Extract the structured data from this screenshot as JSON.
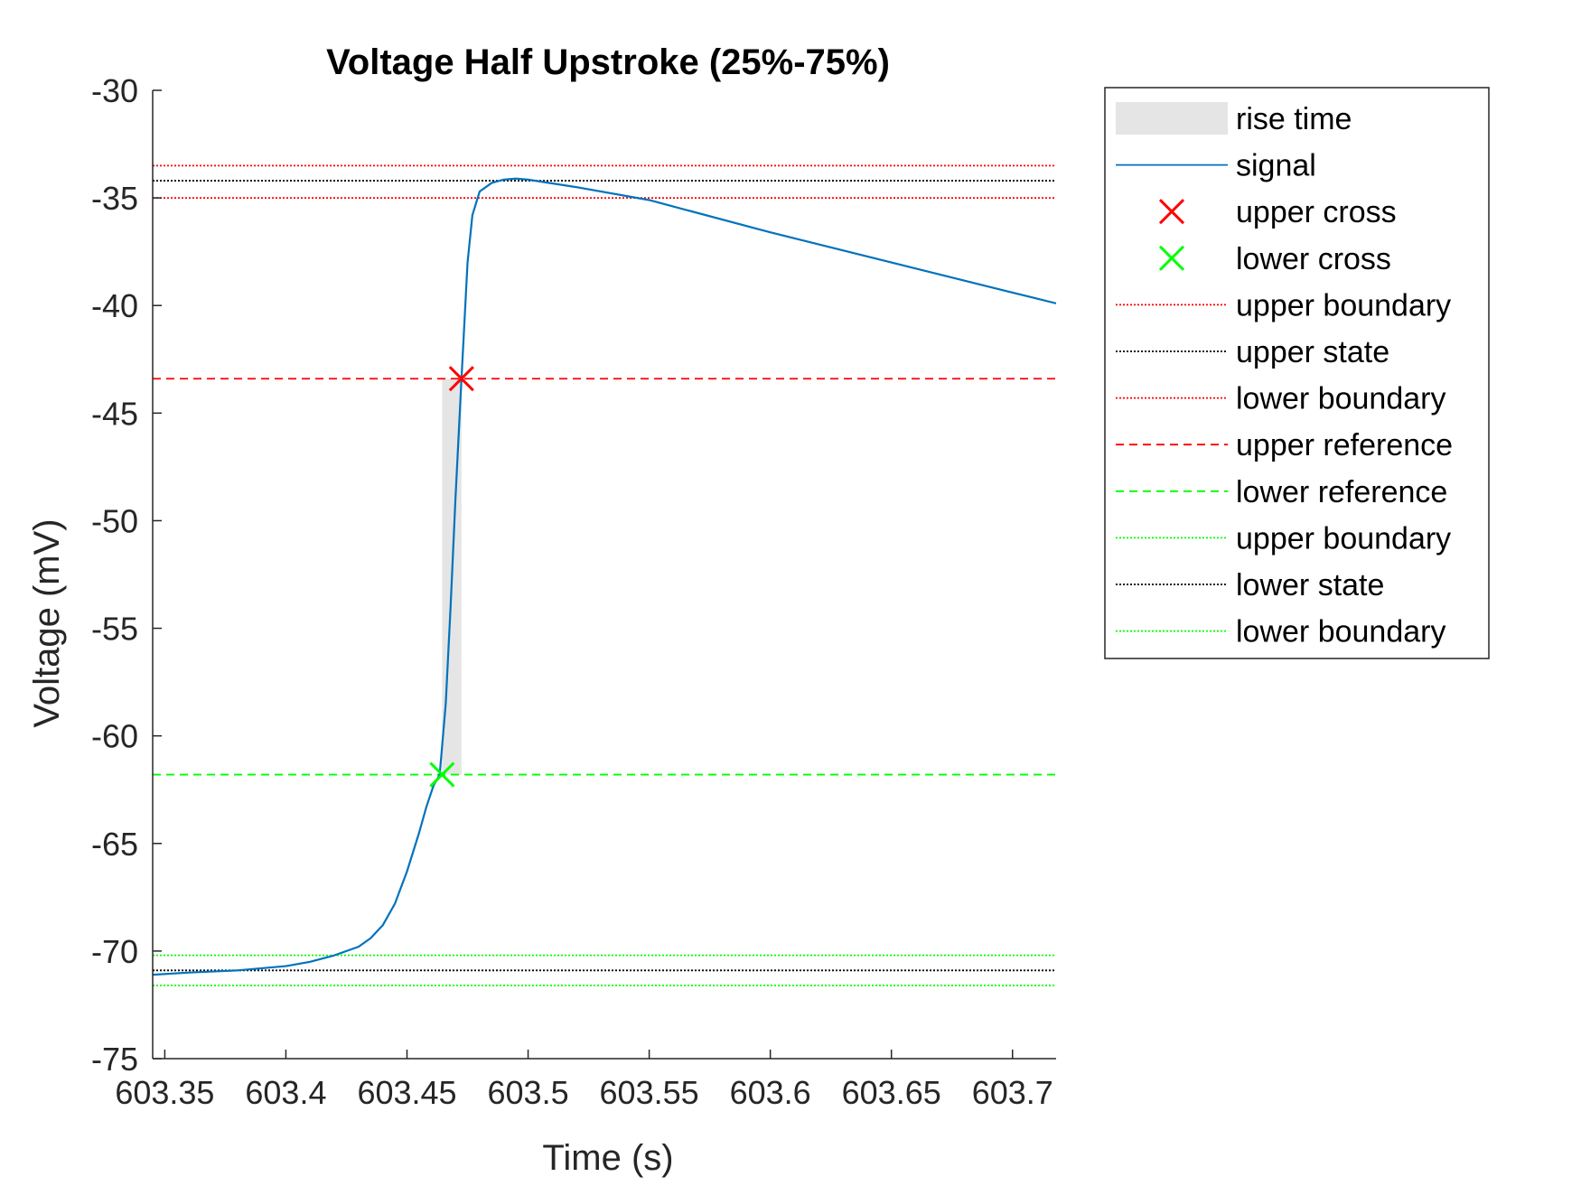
{
  "chart_data": {
    "type": "line",
    "title": "Voltage Half Upstroke (25%-75%)",
    "xlabel": "Time (s)",
    "ylabel": "Voltage (mV)",
    "xlim": [
      603.345,
      603.718
    ],
    "ylim": [
      -75,
      -30
    ],
    "xticks": [
      603.35,
      603.4,
      603.45,
      603.5,
      603.55,
      603.6,
      603.65,
      603.7
    ],
    "xtick_labels": [
      "603.35",
      "603.4",
      "603.45",
      "603.5",
      "603.55",
      "603.6",
      "603.65",
      "603.7"
    ],
    "yticks": [
      -30,
      -35,
      -40,
      -45,
      -50,
      -55,
      -60,
      -65,
      -70,
      -75
    ],
    "ytick_labels": [
      "-30",
      "-35",
      "-40",
      "-45",
      "-50",
      "-55",
      "-60",
      "-65",
      "-70",
      "-75"
    ],
    "grid": false,
    "legend_position": "outside-right",
    "rise_time_band": {
      "x_start": 603.4645,
      "x_end": 603.4725,
      "y_bottom": -61.8,
      "y_top": -43.4,
      "color": "#e5e5e5"
    },
    "signal": {
      "name": "signal",
      "color": "#0072bd",
      "x": [
        603.345,
        603.36,
        603.38,
        603.4,
        603.41,
        603.42,
        603.43,
        603.435,
        603.44,
        603.445,
        603.45,
        603.455,
        603.458,
        603.461,
        603.4635,
        603.466,
        603.468,
        603.47,
        603.4725,
        603.475,
        603.477,
        603.48,
        603.485,
        603.49,
        603.495,
        603.5,
        603.52,
        603.55,
        603.6,
        603.65,
        603.7,
        603.718
      ],
      "y": [
        -71.1,
        -71.0,
        -70.9,
        -70.7,
        -70.5,
        -70.2,
        -69.8,
        -69.4,
        -68.8,
        -67.8,
        -66.3,
        -64.5,
        -63.3,
        -62.3,
        -61.8,
        -58.5,
        -54.0,
        -49.0,
        -43.4,
        -38.0,
        -35.8,
        -34.7,
        -34.3,
        -34.15,
        -34.1,
        -34.15,
        -34.5,
        -35.1,
        -36.6,
        -38.0,
        -39.4,
        -39.9
      ]
    },
    "upper_cross": {
      "name": "upper cross",
      "x": 603.4725,
      "y": -43.4,
      "color": "#ff0000"
    },
    "lower_cross": {
      "name": "lower cross",
      "x": 603.4645,
      "y": -61.8,
      "color": "#00ff00"
    },
    "hlines": [
      {
        "name": "upper boundary",
        "y": -33.5,
        "color": "#ff0000",
        "style": "dotted"
      },
      {
        "name": "upper state",
        "y": -34.2,
        "color": "#000000",
        "style": "dotted"
      },
      {
        "name": "lower boundary",
        "y": -35.0,
        "color": "#ff0000",
        "style": "dotted"
      },
      {
        "name": "upper reference",
        "y": -43.4,
        "color": "#ff0000",
        "style": "dashed"
      },
      {
        "name": "lower reference",
        "y": -61.8,
        "color": "#00ff00",
        "style": "dashed"
      },
      {
        "name": "upper boundary",
        "y": -70.2,
        "color": "#00ff00",
        "style": "dotted"
      },
      {
        "name": "lower state",
        "y": -70.9,
        "color": "#000000",
        "style": "dotted"
      },
      {
        "name": "lower boundary",
        "y": -71.6,
        "color": "#00ff00",
        "style": "dotted"
      }
    ],
    "legend": [
      {
        "label": "rise time",
        "kind": "patch",
        "color": "#e5e5e5"
      },
      {
        "label": "signal",
        "kind": "line",
        "color": "#0072bd",
        "style": "solid"
      },
      {
        "label": "upper cross",
        "kind": "marker",
        "color": "#ff0000"
      },
      {
        "label": "lower cross",
        "kind": "marker",
        "color": "#00ff00"
      },
      {
        "label": "upper boundary",
        "kind": "line",
        "color": "#ff0000",
        "style": "dotted"
      },
      {
        "label": "upper state",
        "kind": "line",
        "color": "#000000",
        "style": "dotted"
      },
      {
        "label": "lower boundary",
        "kind": "line",
        "color": "#ff0000",
        "style": "dotted"
      },
      {
        "label": "upper reference",
        "kind": "line",
        "color": "#ff0000",
        "style": "dashed"
      },
      {
        "label": "lower reference",
        "kind": "line",
        "color": "#00ff00",
        "style": "dashed"
      },
      {
        "label": "upper boundary",
        "kind": "line",
        "color": "#00ff00",
        "style": "dotted"
      },
      {
        "label": "lower state",
        "kind": "line",
        "color": "#000000",
        "style": "dotted"
      },
      {
        "label": "lower boundary",
        "kind": "line",
        "color": "#00ff00",
        "style": "dotted"
      }
    ]
  }
}
